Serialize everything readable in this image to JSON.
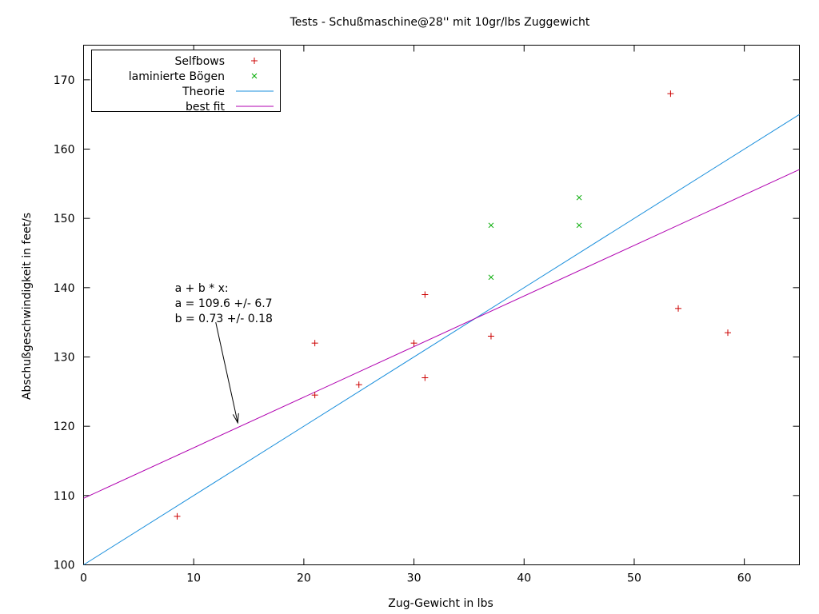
{
  "chart_data": {
    "type": "scatter",
    "title": "Tests - Schußmaschine@28'' mit 10gr/lbs Zuggewicht",
    "xlabel": "Zug-Gewicht in lbs",
    "ylabel": "Abschußgeschwindigkeit in feet/s",
    "xlim": [
      0,
      65
    ],
    "ylim": [
      100,
      175
    ],
    "xticks": [
      0,
      10,
      20,
      30,
      40,
      50,
      60
    ],
    "yticks": [
      100,
      110,
      120,
      130,
      140,
      150,
      160,
      170
    ],
    "grid": false,
    "legend_position": "top-left",
    "series": [
      {
        "name": "Selfbows",
        "kind": "points",
        "marker": "plus",
        "color": "#cc0000",
        "points": [
          [
            8.5,
            107
          ],
          [
            21,
            124.5
          ],
          [
            21,
            132
          ],
          [
            25,
            126
          ],
          [
            30,
            132
          ],
          [
            31,
            127
          ],
          [
            31,
            139
          ],
          [
            37,
            133
          ],
          [
            53.3,
            168
          ],
          [
            54,
            137
          ],
          [
            58.5,
            133.5
          ]
        ]
      },
      {
        "name": "laminierte Bögen",
        "kind": "points",
        "marker": "cross",
        "color": "#00aa00",
        "points": [
          [
            37,
            141.5
          ],
          [
            37,
            149
          ],
          [
            45,
            149
          ],
          [
            45,
            153
          ]
        ]
      },
      {
        "name": "Theorie",
        "kind": "line",
        "color": "#1a8fdc",
        "a": 100,
        "b": 1.0
      },
      {
        "name": "best fit",
        "kind": "line",
        "color": "#b000b0",
        "a": 109.6,
        "b": 0.73
      }
    ],
    "annotation": {
      "lines": [
        "a + b * x:",
        "a = 109.6 +/- 6.7",
        "b = 0.73 +/- 0.18"
      ],
      "text_anchor": [
        8,
        140
      ],
      "arrow_from": [
        12,
        135
      ],
      "arrow_to": [
        14,
        120.5
      ]
    }
  }
}
